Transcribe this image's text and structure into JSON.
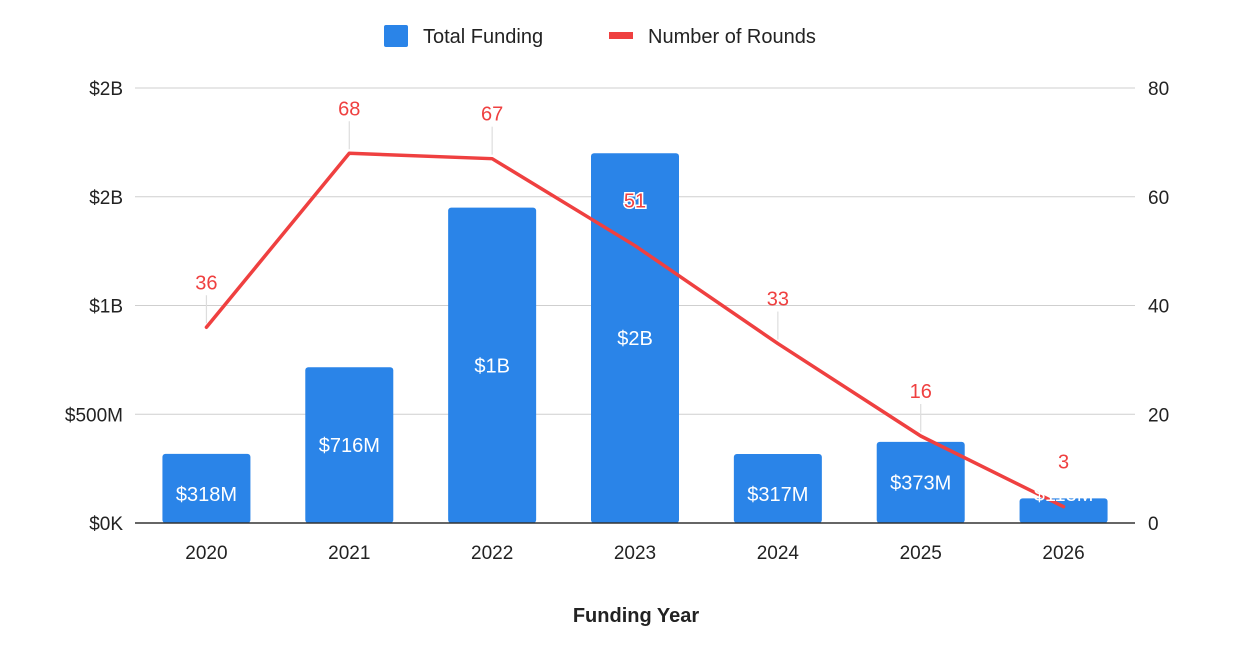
{
  "chart_data": {
    "type": "bar",
    "xlabel": "Funding Year",
    "categories": [
      "2020",
      "2021",
      "2022",
      "2023",
      "2024",
      "2025",
      "2026"
    ],
    "series": [
      {
        "name": "Total Funding",
        "type": "bar",
        "axis": "left",
        "color": "#2a84e8",
        "values": [
          318000000,
          716000000,
          1450000000,
          1700000000,
          317000000,
          373000000,
          113000000
        ],
        "labels": [
          "$318M",
          "$716M",
          "$1B",
          "$2B",
          "$317M",
          "$373M",
          "$113M"
        ]
      },
      {
        "name": "Number of Rounds",
        "type": "line",
        "axis": "right",
        "color": "#ef4040",
        "values": [
          36,
          68,
          67,
          51,
          33,
          16,
          3
        ],
        "labels": [
          "36",
          "68",
          "67",
          "51",
          "33",
          "16",
          "3"
        ]
      }
    ],
    "y_left": {
      "ylim": [
        0,
        2000000000
      ],
      "ticks": [
        0,
        500000000,
        1000000000,
        1500000000,
        2000000000
      ],
      "tick_labels": [
        "$0K",
        "$500M",
        "$1B",
        "$2B",
        "$2B"
      ]
    },
    "y_right": {
      "ylim": [
        0,
        80
      ],
      "ticks": [
        0,
        20,
        40,
        60,
        80
      ],
      "tick_labels": [
        "0",
        "20",
        "40",
        "60",
        "80"
      ]
    },
    "grid": true,
    "legend": "top-center"
  }
}
